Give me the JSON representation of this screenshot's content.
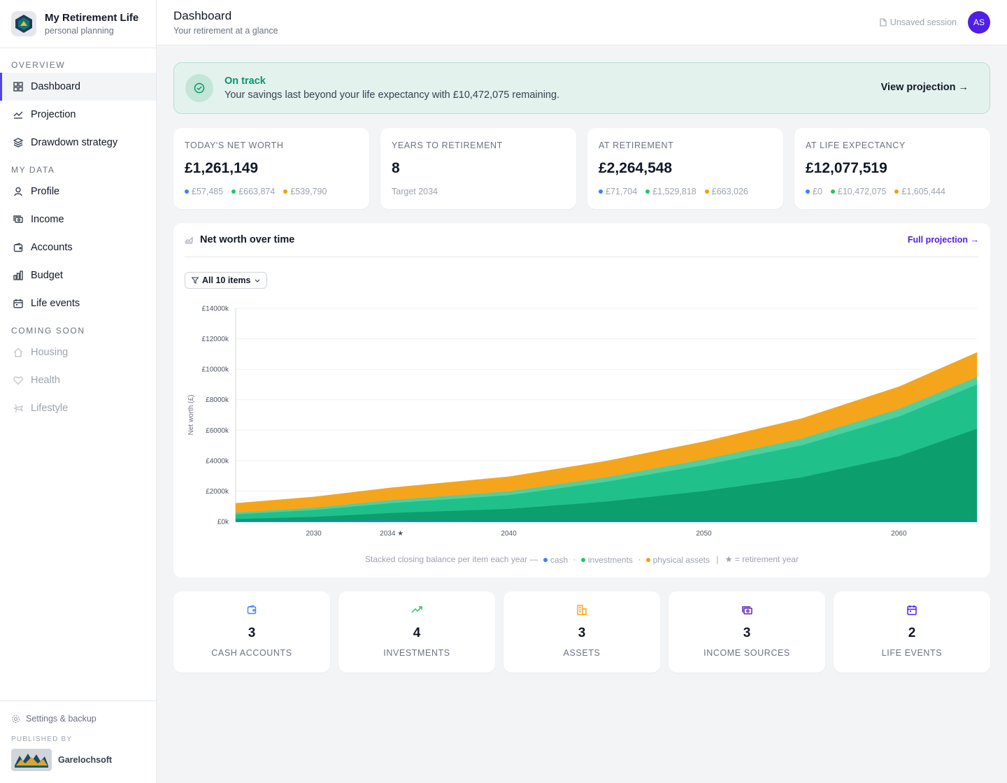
{
  "app": {
    "title": "My Retirement Life",
    "subtitle": "personal planning"
  },
  "sidebar": {
    "sections": [
      {
        "label": "OVERVIEW",
        "items": [
          {
            "label": "Dashboard",
            "icon": "grid-icon",
            "active": true
          },
          {
            "label": "Projection",
            "icon": "line-chart-icon"
          },
          {
            "label": "Drawdown strategy",
            "icon": "layers-icon"
          }
        ]
      },
      {
        "label": "MY DATA",
        "items": [
          {
            "label": "Profile",
            "icon": "user-icon"
          },
          {
            "label": "Income",
            "icon": "banknote-icon"
          },
          {
            "label": "Accounts",
            "icon": "wallet-icon"
          },
          {
            "label": "Budget",
            "icon": "bar-chart-icon"
          },
          {
            "label": "Life events",
            "icon": "calendar-icon"
          }
        ]
      },
      {
        "label": "COMING SOON",
        "items": [
          {
            "label": "Housing",
            "icon": "home-icon",
            "disabled": true
          },
          {
            "label": "Health",
            "icon": "heart-icon",
            "disabled": true
          },
          {
            "label": "Lifestyle",
            "icon": "plane-icon",
            "disabled": true
          }
        ]
      }
    ],
    "footer": {
      "settings_label": "Settings & backup",
      "published_label": "PUBLISHED BY",
      "publisher": "Garelochsoft"
    }
  },
  "header": {
    "title": "Dashboard",
    "subtitle": "Your retirement at a glance",
    "session": "Unsaved session",
    "avatar": "AS"
  },
  "banner": {
    "title": "On track",
    "message": "Your savings last beyond your life expectancy with £10,472,075 remaining.",
    "action": "View projection →"
  },
  "stats": [
    {
      "label": "TODAY'S NET WORTH",
      "value": "£1,261,149",
      "breakdown": [
        "£57,485",
        "£663,874",
        "£539,790"
      ]
    },
    {
      "label": "YEARS TO RETIREMENT",
      "value": "8",
      "note": "Target 2034"
    },
    {
      "label": "AT RETIREMENT",
      "value": "£2,264,548",
      "breakdown": [
        "£71,704",
        "£1,529,818",
        "£663,026"
      ]
    },
    {
      "label": "AT LIFE EXPECTANCY",
      "value": "£12,077,519",
      "breakdown": [
        "£0",
        "£10,472,075",
        "£1,605,444"
      ]
    }
  ],
  "chart": {
    "title": "Net worth over time",
    "link": "Full projection →",
    "filter": "All 10 items",
    "caption": {
      "prefix": "Stacked closing balance per item each year —",
      "cash": "cash",
      "investments": "investments",
      "physical": "physical assets",
      "retirement_note": "= retirement year",
      "sep_dot": "·",
      "sep_bar": "|"
    }
  },
  "chart_data": {
    "type": "area",
    "ylabel": "Net worth (£)",
    "ylim": [
      0,
      14000
    ],
    "yticks": [
      0,
      2000,
      4000,
      6000,
      8000,
      10000,
      12000,
      14000
    ],
    "ytick_labels": [
      "£0k",
      "£2000k",
      "£4000k",
      "£6000k",
      "£8000k",
      "£10000k",
      "£12000k",
      "£14000k"
    ],
    "xlim": [
      2026,
      2064
    ],
    "xticks": [
      2030,
      2034,
      2040,
      2050,
      2060
    ],
    "xtick_labels": [
      "2030",
      "2034 ★",
      "2040",
      "2050",
      "2060"
    ],
    "retirement_year": 2034,
    "x": [
      2026,
      2030,
      2034,
      2040,
      2045,
      2050,
      2055,
      2060,
      2064
    ],
    "series": [
      {
        "name": "cash",
        "color": "#3b82f6",
        "values": [
          60,
          65,
          72,
          40,
          20,
          10,
          5,
          0,
          0
        ]
      },
      {
        "name": "investments",
        "color": "#0d9e6e",
        "values": [
          120,
          250,
          500,
          800,
          1300,
          2000,
          2900,
          4300,
          6100
        ]
      },
      {
        "name": "investments",
        "color": "#20c08a",
        "values": [
          300,
          450,
          650,
          900,
          1300,
          1700,
          2100,
          2600,
          2900
        ]
      },
      {
        "name": "investments",
        "color": "#4ecf9e",
        "values": [
          120,
          150,
          200,
          250,
          300,
          380,
          450,
          500,
          500
        ]
      },
      {
        "name": "physical assets",
        "color": "#f5a51c",
        "values": [
          600,
          700,
          800,
          950,
          1050,
          1150,
          1300,
          1450,
          1600
        ]
      }
    ]
  },
  "counts": [
    {
      "value": "3",
      "label": "CASH ACCOUNTS",
      "icon": "wallet-icon",
      "color": "#3b82f6"
    },
    {
      "value": "4",
      "label": "INVESTMENTS",
      "icon": "trending-up-icon",
      "color": "#22c55e"
    },
    {
      "value": "3",
      "label": "ASSETS",
      "icon": "building-icon",
      "color": "#f59e0b"
    },
    {
      "value": "3",
      "label": "INCOME SOURCES",
      "icon": "banknote-icon",
      "color": "#5b21b6"
    },
    {
      "value": "2",
      "label": "LIFE EVENTS",
      "icon": "calendar-icon",
      "color": "#4f1ee8"
    }
  ]
}
